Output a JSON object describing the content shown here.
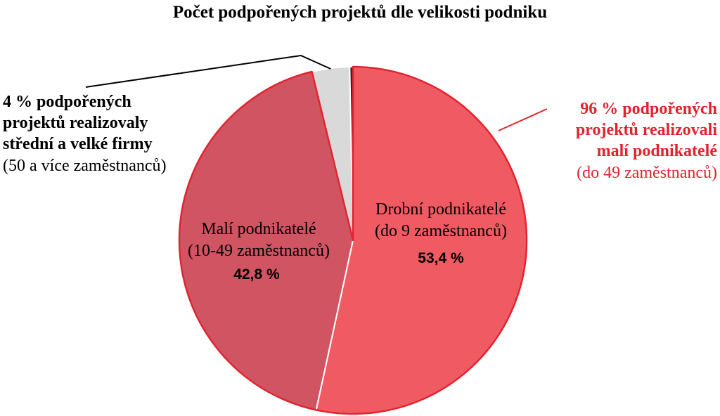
{
  "chart_data": {
    "type": "pie",
    "title": "Počet podpořených projektů dle velikosti podniku",
    "slices": [
      {
        "line1": "Drobní podnikatelé",
        "line2": "(do 9 zaměstnanců)",
        "value": 53.4,
        "value_label": "53,4 %",
        "color": "#f05a63"
      },
      {
        "line1": "Malí podnikatelé",
        "line2": "(10-49 zaměstnanců)",
        "value": 42.8,
        "value_label": "42,8 %",
        "color": "#d05461"
      },
      {
        "line1": "",
        "line2": "",
        "value": 3.5,
        "value_label": "",
        "color": "#d9d9d9"
      },
      {
        "line1": "",
        "line2": "",
        "value": 0.3,
        "value_label": "",
        "color": "#262626"
      }
    ],
    "annotations": {
      "left": {
        "bold_lines": [
          "4 % podpořených",
          "projektů realizovaly",
          "střední a velké firmy"
        ],
        "normal_line": "(50 a více zaměstnanců)",
        "color": "#000000"
      },
      "right": {
        "bold_lines": [
          "96 % podpořených",
          "projektů realizovali",
          "malí podnikatelé"
        ],
        "normal_line": "(do 49 zaměstnanců)",
        "color": "#e0242f"
      }
    },
    "accent_outline_color": "#e0242f"
  }
}
